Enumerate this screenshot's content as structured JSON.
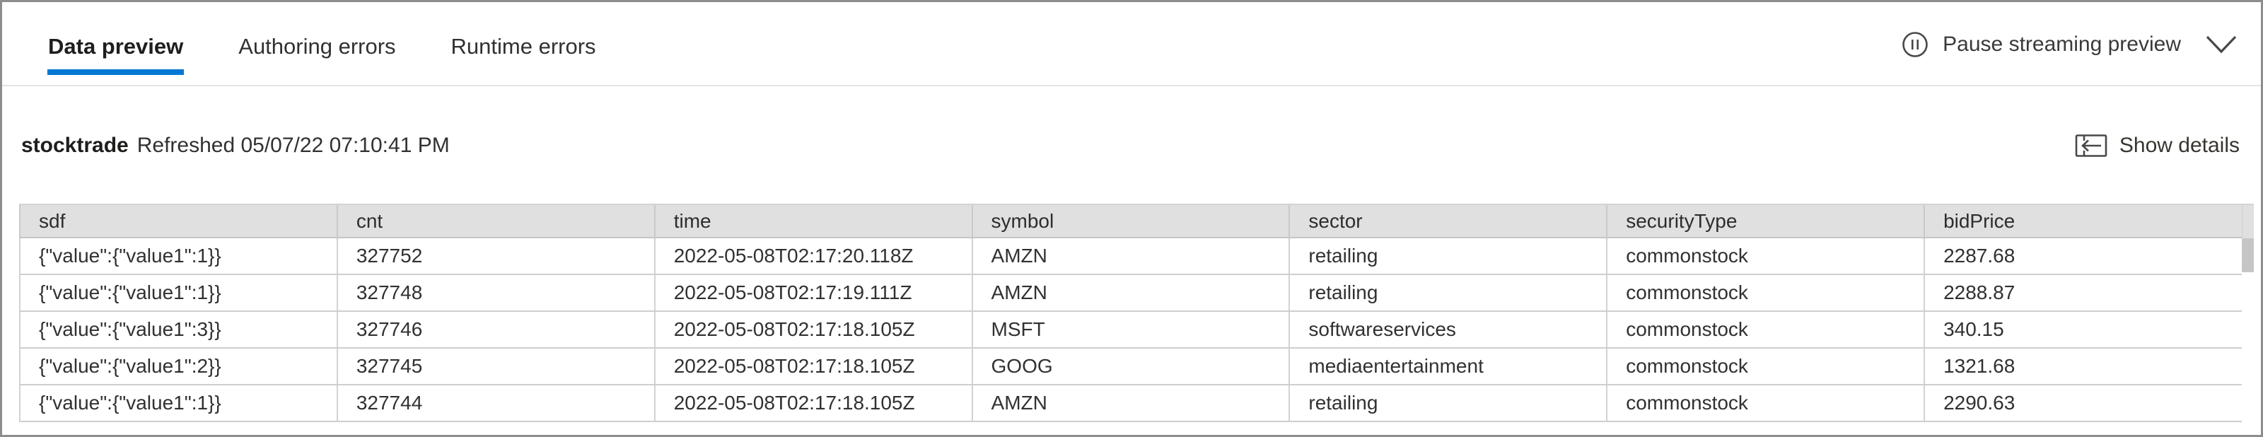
{
  "tabs": [
    {
      "label": "Data preview",
      "active": true
    },
    {
      "label": "Authoring errors",
      "active": false
    },
    {
      "label": "Runtime errors",
      "active": false
    }
  ],
  "streaming_control": {
    "label": "Pause streaming preview",
    "icon": "pause-circle-icon",
    "expander_icon": "chevron-down-icon"
  },
  "info_bar": {
    "source_name": "stocktrade",
    "refreshed_text": "Refreshed 05/07/22 07:10:41 PM",
    "show_details": {
      "label": "Show details",
      "icon": "show-details-icon"
    }
  },
  "colors": {
    "accent": "#0078d4",
    "header_bg": "#e0e0e0",
    "frame": "#8d8d8d",
    "text": "#323130",
    "scrollbar_thumb": "#c7c6c6"
  },
  "table": {
    "columns": [
      {
        "id": "sdf",
        "label": "sdf"
      },
      {
        "id": "cnt",
        "label": "cnt"
      },
      {
        "id": "time",
        "label": "time"
      },
      {
        "id": "symbol",
        "label": "symbol"
      },
      {
        "id": "sector",
        "label": "sector"
      },
      {
        "id": "securityType",
        "label": "securityType"
      },
      {
        "id": "bidPrice",
        "label": "bidPrice"
      }
    ],
    "rows": [
      {
        "sdf": "{\"value\":{\"value1\":1}}",
        "cnt": "327752",
        "time": "2022-05-08T02:17:20.118Z",
        "symbol": "AMZN",
        "sector": "retailing",
        "securityType": "commonstock",
        "bidPrice": "2287.68"
      },
      {
        "sdf": "{\"value\":{\"value1\":1}}",
        "cnt": "327748",
        "time": "2022-05-08T02:17:19.111Z",
        "symbol": "AMZN",
        "sector": "retailing",
        "securityType": "commonstock",
        "bidPrice": "2288.87"
      },
      {
        "sdf": "{\"value\":{\"value1\":3}}",
        "cnt": "327746",
        "time": "2022-05-08T02:17:18.105Z",
        "symbol": "MSFT",
        "sector": "softwareservices",
        "securityType": "commonstock",
        "bidPrice": "340.15"
      },
      {
        "sdf": "{\"value\":{\"value1\":2}}",
        "cnt": "327745",
        "time": "2022-05-08T02:17:18.105Z",
        "symbol": "GOOG",
        "sector": "mediaentertainment",
        "securityType": "commonstock",
        "bidPrice": "1321.68"
      },
      {
        "sdf": "{\"value\":{\"value1\":1}}",
        "cnt": "327744",
        "time": "2022-05-08T02:17:18.105Z",
        "symbol": "AMZN",
        "sector": "retailing",
        "securityType": "commonstock",
        "bidPrice": "2290.63"
      }
    ]
  }
}
